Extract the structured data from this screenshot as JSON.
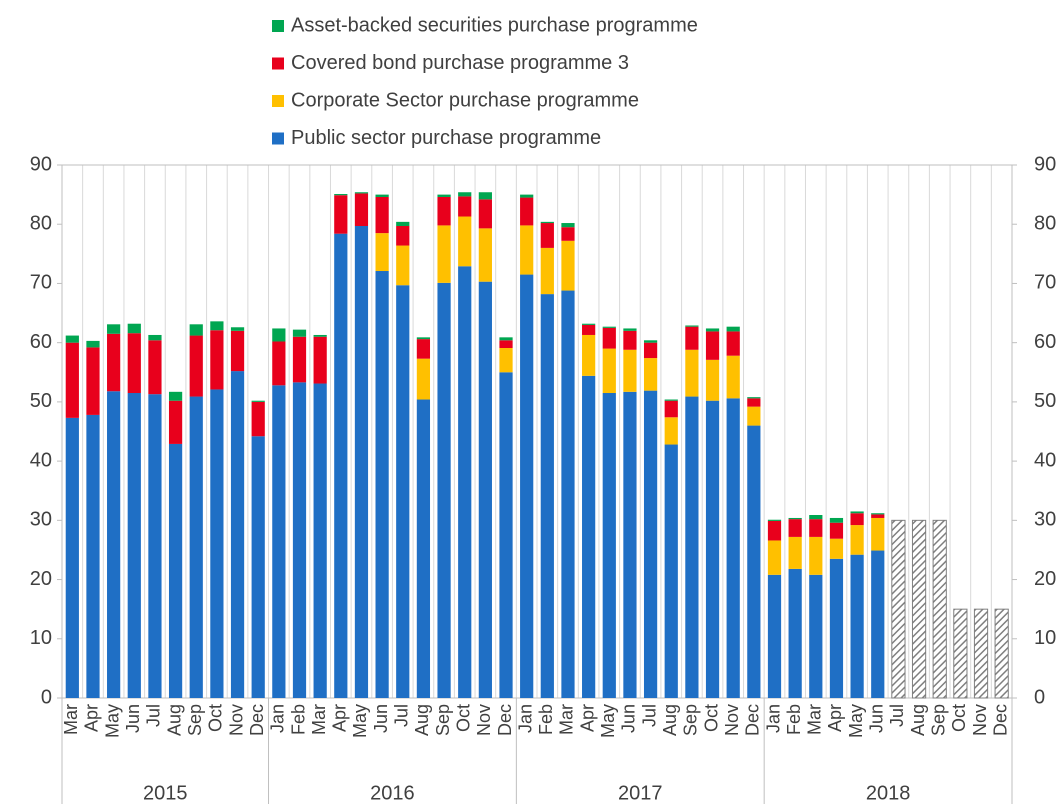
{
  "chart_data": {
    "type": "stacked_bar",
    "categories": [
      "Mar",
      "Apr",
      "May",
      "Jun",
      "Jul",
      "Aug",
      "Sep",
      "Oct",
      "Nov",
      "Dec",
      "Jan",
      "Feb",
      "Mar",
      "Apr",
      "May",
      "Jun",
      "Jul",
      "Aug",
      "Sep",
      "Oct",
      "Nov",
      "Dec",
      "Jan",
      "Feb",
      "Mar",
      "Apr",
      "May",
      "Jun",
      "Jul",
      "Aug",
      "Sep",
      "Oct",
      "Nov",
      "Dec",
      "Jan",
      "Feb",
      "Mar",
      "Apr",
      "May",
      "Jun",
      "Jul",
      "Aug",
      "Sep",
      "Oct",
      "Nov",
      "Dec"
    ],
    "year_labels": [
      "2015",
      null,
      null,
      null,
      null,
      null,
      null,
      null,
      null,
      null,
      "2016",
      null,
      null,
      null,
      null,
      null,
      null,
      null,
      null,
      null,
      null,
      null,
      "2017",
      null,
      null,
      null,
      null,
      null,
      null,
      null,
      null,
      null,
      null,
      null,
      "2018",
      null,
      null,
      null,
      null,
      null,
      null,
      null,
      null,
      null,
      null,
      null
    ],
    "series": [
      {
        "name": "Public sector purchase programme",
        "color": "#1f6fc5",
        "values": [
          47.3,
          47.8,
          51.8,
          51.5,
          51.3,
          42.9,
          50.9,
          52.1,
          55.2,
          44.2,
          52.8,
          53.3,
          53.1,
          78.4,
          79.7,
          72.1,
          69.7,
          50.4,
          70.1,
          72.9,
          70.3,
          55.0,
          71.5,
          68.2,
          68.8,
          54.4,
          51.5,
          51.7,
          51.9,
          42.8,
          50.9,
          50.2,
          50.6,
          46.0,
          20.8,
          21.8,
          20.8,
          23.5,
          24.2,
          24.9,
          null,
          null,
          null,
          null,
          null,
          null
        ]
      },
      {
        "name": "Corporate Sector purchase programme",
        "color": "#ffc000",
        "values": [
          0,
          0,
          0,
          0,
          0,
          0,
          0,
          0,
          0,
          0,
          0,
          0,
          0,
          0,
          0,
          6.4,
          6.7,
          6.9,
          9.7,
          8.4,
          9.0,
          4.1,
          8.3,
          7.8,
          8.4,
          6.9,
          7.5,
          7.1,
          5.5,
          4.6,
          7.9,
          6.9,
          7.2,
          3.2,
          5.8,
          5.4,
          6.4,
          3.4,
          5.0,
          5.5,
          null,
          null,
          null,
          null,
          null,
          null
        ]
      },
      {
        "name": "Covered bond purchase programme 3",
        "color": "#e8001c",
        "values": [
          12.7,
          11.4,
          9.7,
          10.1,
          9.1,
          7.3,
          10.3,
          10.0,
          6.8,
          5.8,
          7.4,
          7.7,
          7.9,
          6.5,
          5.5,
          6.1,
          3.3,
          3.3,
          4.8,
          3.4,
          4.9,
          1.3,
          4.7,
          4.2,
          2.3,
          1.7,
          3.5,
          3.2,
          2.6,
          2.8,
          3.9,
          4.8,
          4.1,
          1.4,
          3.3,
          3.0,
          3.0,
          2.7,
          2.0,
          0.6,
          null,
          null,
          null,
          null,
          null,
          null
        ]
      },
      {
        "name": "Asset-backed securities purchase programme",
        "color": "#00a651",
        "values": [
          1.2,
          1.1,
          1.6,
          1.6,
          0.9,
          1.5,
          1.9,
          1.5,
          0.6,
          0.2,
          2.2,
          1.2,
          0.3,
          0.2,
          0.2,
          0.4,
          0.7,
          0.3,
          0.4,
          0.7,
          1.2,
          0.5,
          0.5,
          0.2,
          0.7,
          0.2,
          0.2,
          0.4,
          0.4,
          0.2,
          0.2,
          0.5,
          0.8,
          0.2,
          0.2,
          0.2,
          0.7,
          0.8,
          0.3,
          0.2,
          null,
          null,
          null,
          null,
          null,
          null
        ]
      }
    ],
    "hatched_values": [
      null,
      null,
      null,
      null,
      null,
      null,
      null,
      null,
      null,
      null,
      null,
      null,
      null,
      null,
      null,
      null,
      null,
      null,
      null,
      null,
      null,
      null,
      null,
      null,
      null,
      null,
      null,
      null,
      null,
      null,
      null,
      null,
      null,
      null,
      null,
      null,
      null,
      null,
      null,
      null,
      30,
      30,
      30,
      15,
      15,
      15
    ],
    "hatch_color": "#7f7f7f",
    "ylim": [
      0,
      90
    ],
    "yticks": [
      0,
      10,
      20,
      30,
      40,
      50,
      60,
      70,
      80,
      90
    ],
    "y2lim": [
      0,
      90
    ],
    "y2ticks": [
      0,
      10,
      20,
      30,
      40,
      50,
      60,
      70,
      80,
      90
    ],
    "grid": "x"
  }
}
